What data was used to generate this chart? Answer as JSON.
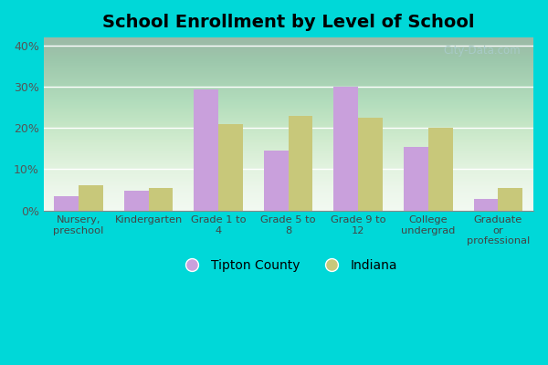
{
  "title": "School Enrollment by Level of School",
  "categories": [
    "Nursery,\npreschool",
    "Kindergarten",
    "Grade 1 to\n4",
    "Grade 5 to\n8",
    "Grade 9 to\n12",
    "College\nundergrad",
    "Graduate\nor\nprofessional"
  ],
  "tipton_values": [
    3.5,
    4.8,
    29.5,
    14.5,
    30.0,
    15.5,
    2.8
  ],
  "indiana_values": [
    6.2,
    5.5,
    21.0,
    23.0,
    22.5,
    20.0,
    5.5
  ],
  "tipton_color": "#c9a0dc",
  "indiana_color": "#c8c87a",
  "outer_bg_color": "#00d8d8",
  "plot_bg_top": "#f0f8f0",
  "plot_bg_bottom": "#c8e8c8",
  "ylim": [
    0,
    42
  ],
  "yticks": [
    0,
    10,
    20,
    30,
    40
  ],
  "ytick_labels": [
    "0%",
    "10%",
    "20%",
    "30%",
    "40%"
  ],
  "legend_tipton": "Tipton County",
  "legend_indiana": "Indiana",
  "bar_width": 0.35,
  "watermark": "City-Data.com"
}
